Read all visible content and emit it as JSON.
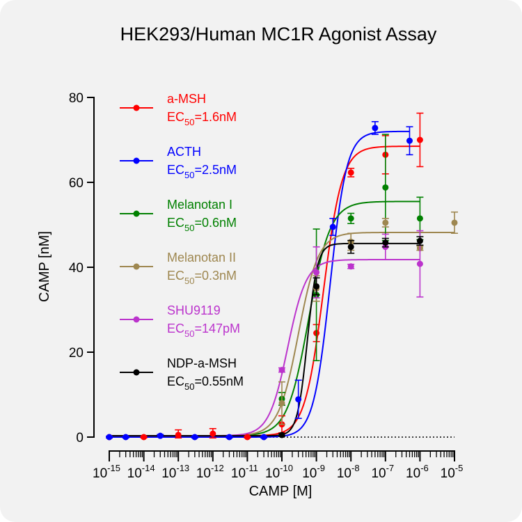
{
  "chart_data": {
    "type": "scatter",
    "title": "HEK293/Human MC1R Agonist Assay",
    "xlabel": "CAMP [M]",
    "ylabel": "CAMP [nM]",
    "x_scale": "log",
    "xlim": [
      1e-15,
      1e-05
    ],
    "ylim": [
      0,
      80
    ],
    "y_ticks": [
      0,
      20,
      40,
      60,
      80
    ],
    "x_tick_exponents": [
      "-15",
      "-14",
      "-13",
      "-12",
      "-11",
      "-10",
      "-9",
      "-8",
      "-7",
      "-6",
      "-5"
    ],
    "x_tick_base": "10",
    "baseline": "dotted",
    "grid": false,
    "legend_position": "top-left",
    "series": [
      {
        "name": "a-MSH",
        "ec50_prefix": "EC",
        "ec50_sub": "50",
        "ec50_value": "=1.6nM",
        "color": "#ff0000",
        "x": [
          1e-15,
          1e-14,
          1e-13,
          1e-12,
          1e-11,
          1e-10,
          1e-09,
          1e-08,
          1e-07,
          1e-06
        ],
        "y": [
          0,
          0,
          0.5,
          0.8,
          0,
          3,
          24.5,
          62.3,
          66.5,
          70
        ],
        "err": [
          0.2,
          0.2,
          1.2,
          1.2,
          0.2,
          2,
          2,
          1,
          4.5,
          6.3
        ],
        "fit": {
          "bottom": 0.3,
          "top": 68.5,
          "ec50": 1.6e-09,
          "hill": 1.6
        }
      },
      {
        "name": "ACTH",
        "ec50_prefix": "EC",
        "ec50_sub": "50",
        "ec50_value": "=2.5nM",
        "color": "#0000ff",
        "x": [
          1e-15,
          3e-15,
          3e-14,
          3e-13,
          3e-12,
          3e-11,
          3e-10,
          3e-09,
          5e-08,
          5e-07
        ],
        "y": [
          0,
          0,
          0.3,
          0,
          0,
          0,
          8.9,
          49.5,
          72.8,
          69.8
        ],
        "err": [
          0.2,
          0.2,
          0.3,
          0.2,
          0.2,
          0.2,
          4.5,
          2,
          1.5,
          3.3
        ],
        "fit": {
          "bottom": 0,
          "top": 72,
          "ec50": 2.5e-09,
          "hill": 1.8
        }
      },
      {
        "name": "Melanotan I",
        "ec50_prefix": "EC",
        "ec50_sub": "50",
        "ec50_value": "=0.6nM",
        "color": "#008000",
        "x": [
          1e-10,
          1e-09,
          1e-08,
          1e-07,
          1e-06
        ],
        "y": [
          9,
          33.5,
          51.5,
          58.8,
          51.5
        ],
        "err": [
          1.5,
          15.5,
          1.2,
          12.5,
          5
        ],
        "fit": {
          "bottom": 0.3,
          "top": 55.5,
          "ec50": 6e-10,
          "hill": 1.4
        }
      },
      {
        "name": "Melanotan II",
        "ec50_prefix": "EC",
        "ec50_sub": "50",
        "ec50_value": "=0.3nM",
        "color": "#9e8750",
        "x": [
          1e-10,
          1e-09,
          1e-08,
          1e-07,
          1e-06,
          1e-05
        ],
        "y": [
          8,
          35,
          46,
          50.5,
          44.5,
          50.5
        ],
        "err": [
          5,
          3,
          2,
          1,
          0.5,
          2.5
        ],
        "fit": {
          "bottom": 0.3,
          "top": 48.2,
          "ec50": 3e-10,
          "hill": 1.5
        }
      },
      {
        "name": "SHU9119",
        "ec50_prefix": "EC",
        "ec50_sub": "50",
        "ec50_value": "=147pM",
        "color": "#bb33cc",
        "x": [
          1e-10,
          1e-09,
          1e-08,
          1e-07,
          1e-06
        ],
        "y": [
          15.8,
          38.8,
          40.2,
          44.8,
          40.8
        ],
        "err": [
          0.5,
          6,
          0.5,
          3,
          7.8
        ],
        "fit": {
          "bottom": 0.3,
          "top": 41.8,
          "ec50": 1.47e-10,
          "hill": 1.6
        }
      },
      {
        "name": "NDP-a-MSH",
        "ec50_prefix": "EC",
        "ec50_sub": "50",
        "ec50_value": "=0.55nM",
        "color": "#000000",
        "x": [
          1e-10,
          1e-09,
          1e-08,
          1e-07,
          1e-06
        ],
        "y": [
          0.5,
          35.5,
          44.8,
          45.8,
          46.2
        ],
        "err": [
          0.3,
          2,
          1.5,
          1,
          1
        ],
        "fit": {
          "bottom": 0.3,
          "top": 45.6,
          "ec50": 5.5e-10,
          "hill": 3
        }
      }
    ]
  }
}
